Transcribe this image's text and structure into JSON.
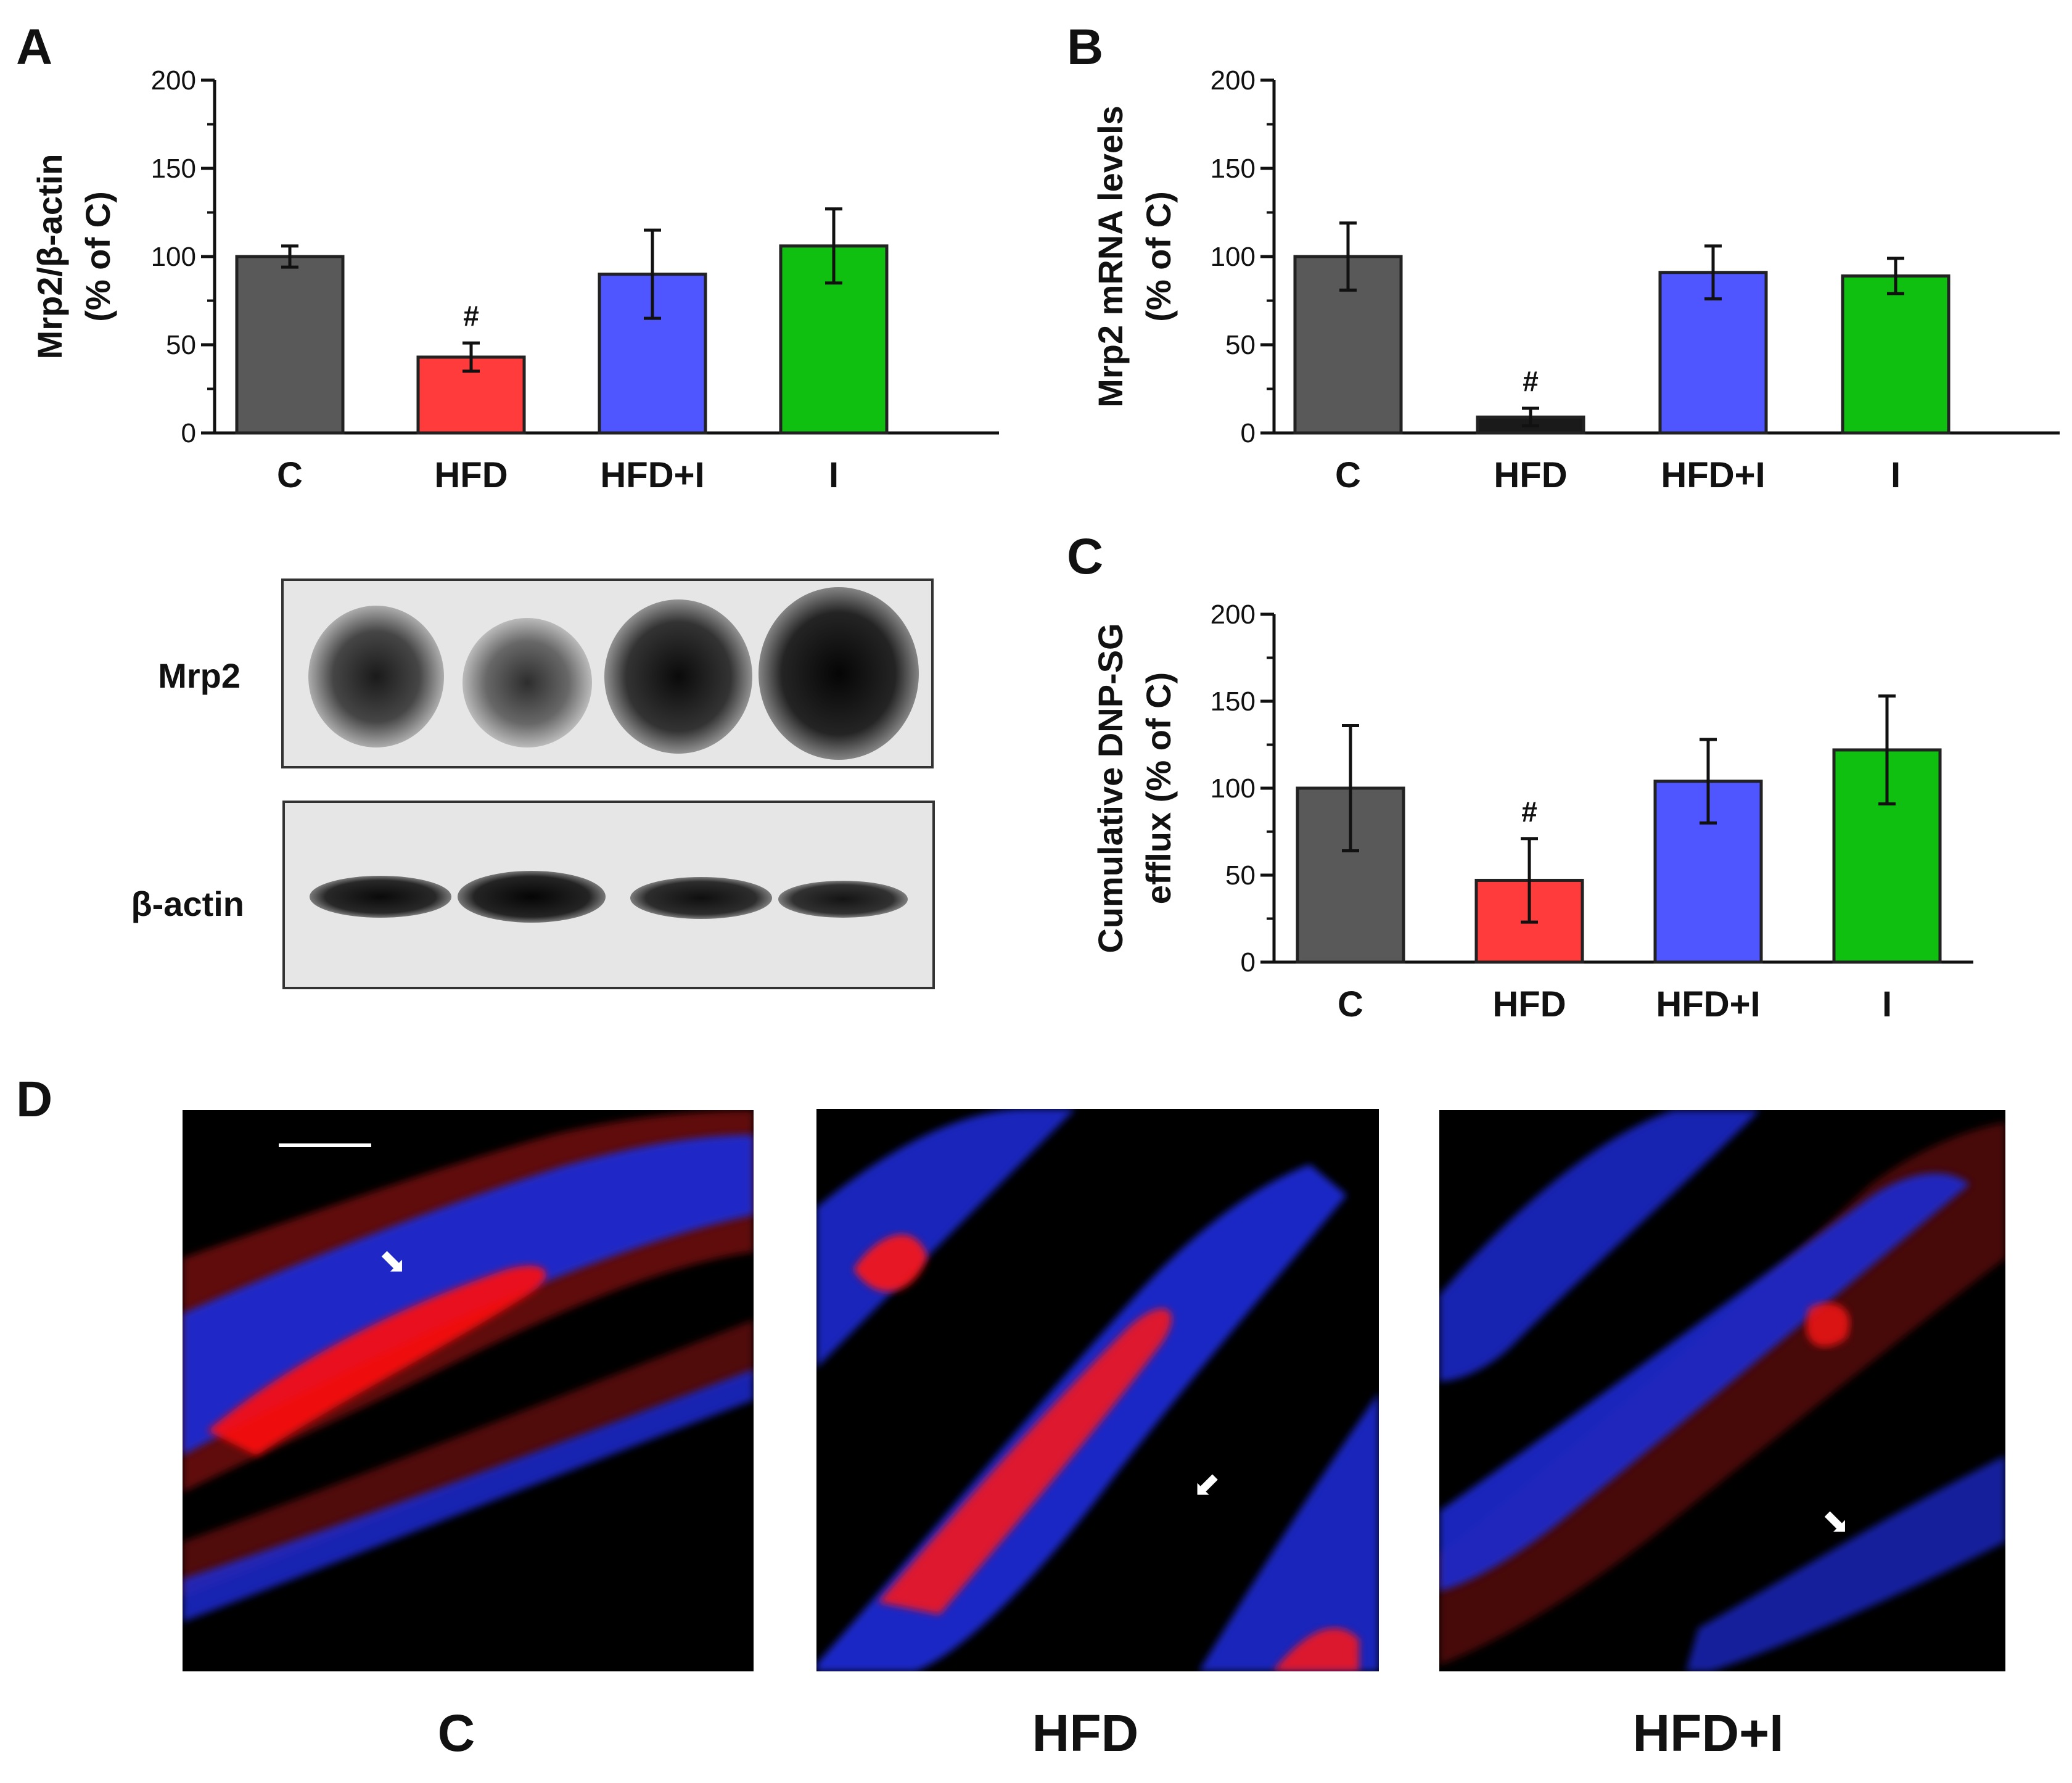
{
  "panels": {
    "a": "A",
    "b": "B",
    "c": "C",
    "d": "D"
  },
  "colors": {
    "C": "#595959",
    "HFD": "#ff3b3b",
    "HFD+I": "#4f55ff",
    "I": "#10c010",
    "HFD_B": "#1a1a1a"
  },
  "chart_data": [
    {
      "id": "A",
      "type": "bar",
      "categories": [
        "C",
        "HFD",
        "HFD+I",
        "I"
      ],
      "values": [
        100,
        43,
        90,
        106
      ],
      "errors": [
        6,
        8,
        25,
        21
      ],
      "annotations": [
        "",
        "#",
        "",
        ""
      ],
      "ylabel_line1": "Mrp2/β-actin",
      "ylabel_line2": "(% of C)",
      "ylim": [
        0,
        200
      ],
      "yticks": [
        0,
        50,
        100,
        150,
        200
      ]
    },
    {
      "id": "B",
      "type": "bar",
      "categories": [
        "C",
        "HFD",
        "HFD+I",
        "I"
      ],
      "values": [
        100,
        9,
        91,
        89
      ],
      "errors": [
        19,
        5,
        15,
        10
      ],
      "annotations": [
        "",
        "#",
        "",
        ""
      ],
      "ylabel_line1": "Mrp2 mRNA levels",
      "ylabel_line2": "(% of C)",
      "ylim": [
        0,
        200
      ],
      "yticks": [
        0,
        50,
        100,
        150,
        200
      ]
    },
    {
      "id": "C",
      "type": "bar",
      "categories": [
        "C",
        "HFD",
        "HFD+I",
        "I"
      ],
      "values": [
        100,
        47,
        104,
        122
      ],
      "errors": [
        36,
        24,
        24,
        31
      ],
      "annotations": [
        "",
        "#",
        "",
        ""
      ],
      "ylabel_line1": "Cumulative DNP-SG",
      "ylabel_line2": "efflux (% of C)",
      "ylim": [
        0,
        200
      ],
      "yticks": [
        0,
        50,
        100,
        150,
        200
      ]
    }
  ],
  "blot": {
    "mrp2_label": "Mrp2",
    "actin_label": "β-actin"
  },
  "micrographs": [
    {
      "label": "C"
    },
    {
      "label": "HFD"
    },
    {
      "label": "HFD+I"
    }
  ]
}
